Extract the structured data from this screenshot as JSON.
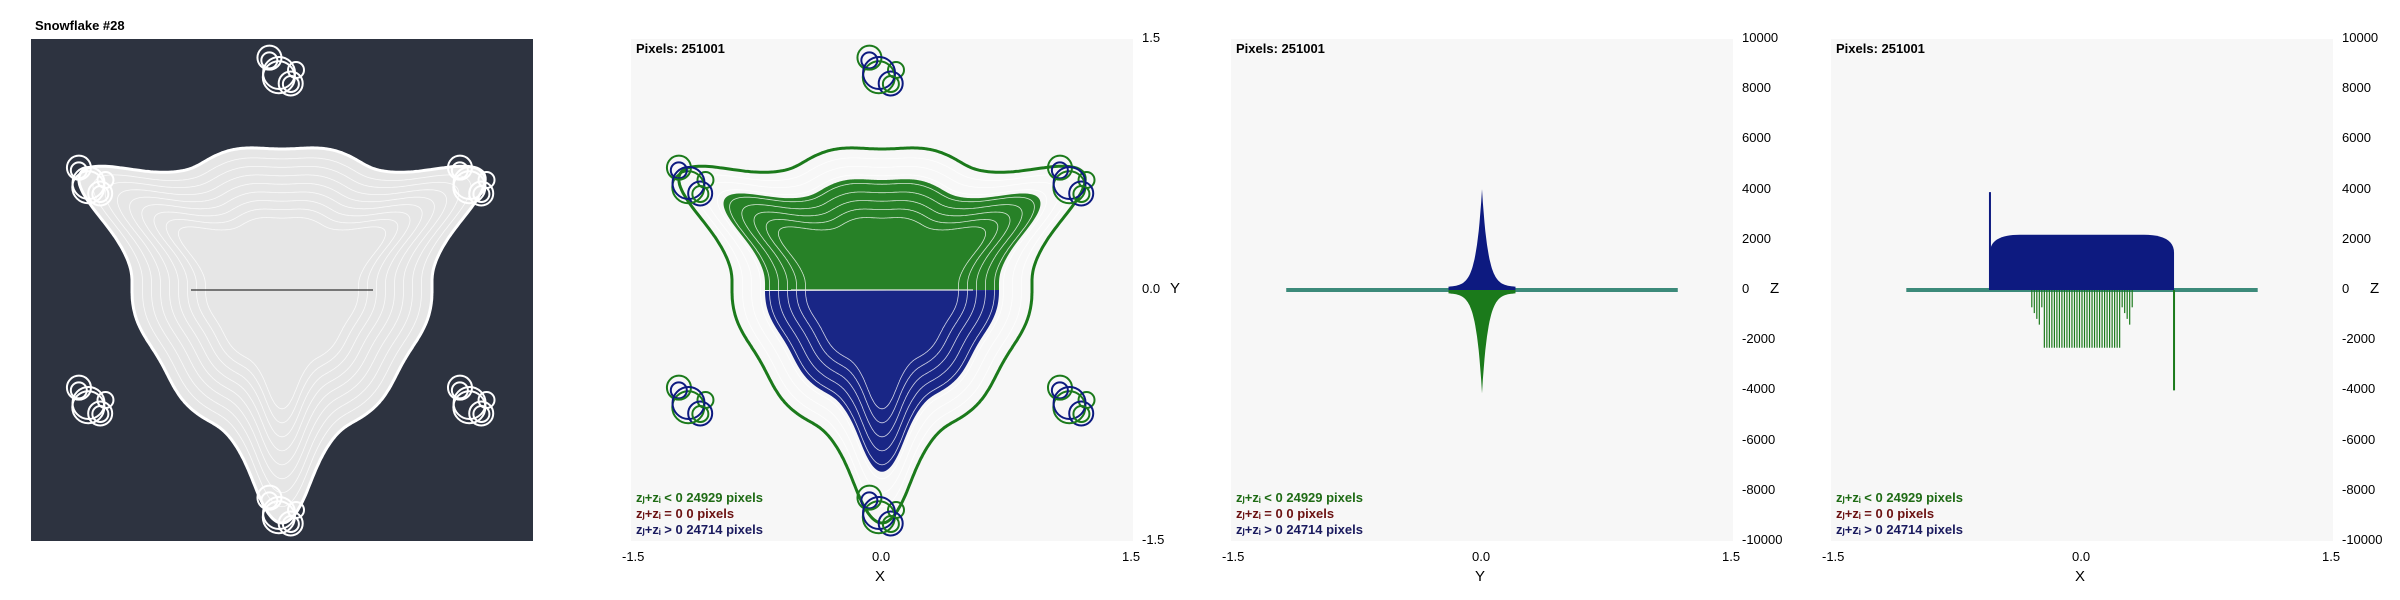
{
  "title": "Snowflake #28",
  "pixels_label": "Pixels: 251001",
  "legend": [
    {
      "text": "zⱼ+zᵢ < 0  24929 pixels",
      "color": "#1e6b14"
    },
    {
      "text": "zⱼ+zᵢ = 0  0 pixels",
      "color": "#6b1212"
    },
    {
      "text": "zⱼ+zᵢ > 0  24714 pixels",
      "color": "#1a1a5e"
    }
  ],
  "colors": {
    "negative": "#1b7a1b",
    "zero": "#7a1a1a",
    "positive": "#0d1a80",
    "background_dark": "#2d3340",
    "plot_bg": "#f7f7f7",
    "snowflake_light": "#e6e6e6"
  },
  "chart_data": [
    {
      "type": "scatter",
      "panel": "snowflake-image",
      "title": "Snowflake #28",
      "x_range": [
        -1.5,
        1.5
      ],
      "y_range": [
        -1.5,
        1.5
      ]
    },
    {
      "type": "scatter",
      "panel": "xy-projection",
      "xlabel": "X",
      "ylabel": "Y",
      "xlim": [
        -1.5,
        1.5
      ],
      "ylim": [
        -1.5,
        1.5
      ],
      "x_ticks": [
        "-1.5",
        "0.0",
        "1.5"
      ],
      "y_ticks": [
        "1.5",
        "0.0",
        "-1.5"
      ],
      "y_axis_side": "right"
    },
    {
      "type": "area",
      "panel": "yz-projection",
      "xlabel": "Y",
      "ylabel": "Z",
      "xlim": [
        -1.5,
        1.5
      ],
      "ylim": [
        -10000,
        10000
      ],
      "x_ticks": [
        "-1.5",
        "0.0",
        "1.5"
      ],
      "y_ticks": [
        "10000",
        "8000",
        "6000",
        "4000",
        "2000",
        "0",
        "-2000",
        "-4000",
        "-6000",
        "-8000",
        "-10000"
      ],
      "y_axis_side": "right",
      "series": [
        {
          "name": "zⱼ+zᵢ > 0",
          "peak": [
            0.0,
            3900
          ],
          "spread_x": [
            -0.2,
            0.2
          ]
        },
        {
          "name": "zⱼ+zᵢ < 0",
          "peak": [
            0.0,
            -4000
          ],
          "spread_x": [
            -0.2,
            0.2
          ]
        }
      ],
      "baseline_x": [
        -1.17,
        1.17
      ]
    },
    {
      "type": "area",
      "panel": "xz-projection",
      "xlabel": "X",
      "ylabel": "Z",
      "xlim": [
        -1.5,
        1.5
      ],
      "ylim": [
        -10000,
        10000
      ],
      "x_ticks": [
        "-1.5",
        "0.0",
        "1.5"
      ],
      "y_ticks": [
        "10000",
        "8000",
        "6000",
        "4000",
        "2000",
        "0",
        "-2000",
        "-4000",
        "-6000",
        "-8000",
        "-10000"
      ],
      "y_axis_side": "right",
      "series": [
        {
          "name": "zⱼ+zᵢ > 0",
          "x_range": [
            -0.55,
            0.55
          ],
          "plateau": 2200,
          "spike": [
            -0.55,
            3900
          ]
        },
        {
          "name": "zⱼ+zᵢ < 0",
          "x_range": [
            -0.3,
            0.3
          ],
          "plateau": -2300,
          "spike": [
            0.55,
            -4000
          ]
        }
      ],
      "baseline_x": [
        -1.05,
        1.05
      ]
    }
  ]
}
